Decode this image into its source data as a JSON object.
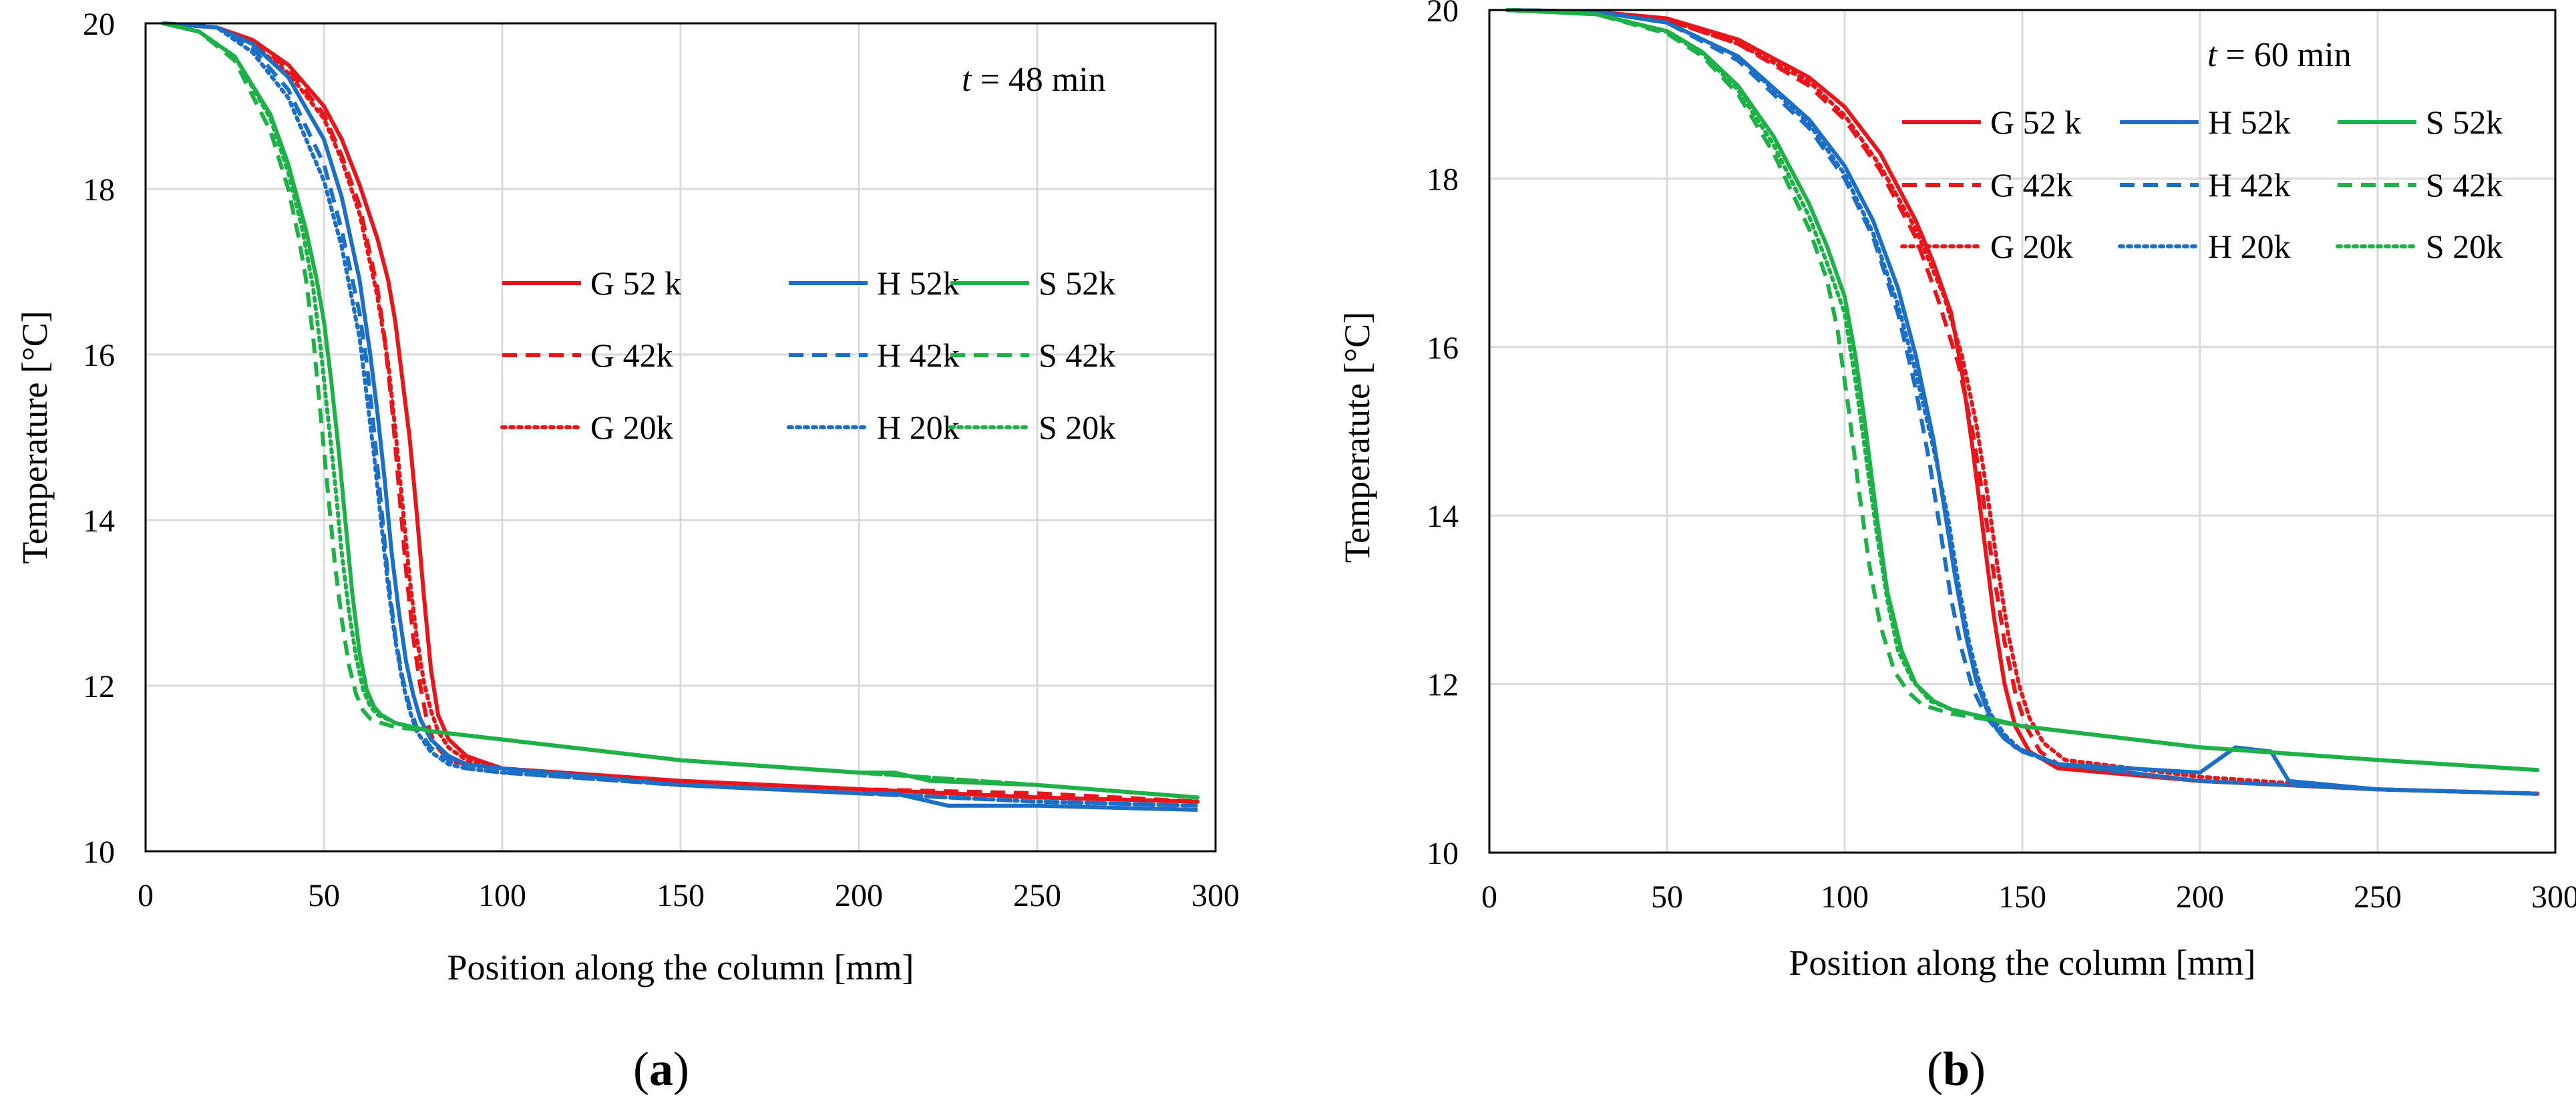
{
  "chart_data": [
    {
      "type": "line",
      "panel_label": "a",
      "annotation": {
        "var": "t",
        "rest": " = 48 min"
      },
      "xlabel": "Position along the column [mm]",
      "ylabel": "Temperature [°C]",
      "xlim": [
        0,
        300
      ],
      "ylim": [
        10,
        20
      ],
      "xticks": [
        0,
        50,
        100,
        150,
        200,
        250,
        300
      ],
      "yticks": [
        10,
        12,
        14,
        16,
        18,
        20
      ],
      "grid": true,
      "legend_position": "center-right",
      "series": [
        {
          "name": "G 52 k",
          "color": "#E8151B",
          "dash": "solid",
          "x": [
            5,
            20,
            30,
            40,
            50,
            55,
            60,
            65,
            68,
            70,
            72,
            74,
            76,
            78,
            80,
            82,
            85,
            90,
            100,
            150,
            200,
            250,
            295
          ],
          "y": [
            20,
            19.95,
            19.8,
            19.5,
            19.0,
            18.6,
            18.05,
            17.4,
            16.9,
            16.4,
            15.7,
            15.0,
            14.1,
            13.1,
            12.2,
            11.65,
            11.35,
            11.15,
            11.0,
            10.85,
            10.75,
            10.65,
            10.6
          ]
        },
        {
          "name": "G 42k",
          "color": "#E8151B",
          "dash": "dash",
          "x": [
            5,
            20,
            30,
            40,
            50,
            55,
            60,
            65,
            67,
            69,
            71,
            73,
            75,
            77,
            79,
            81,
            85,
            90,
            100,
            150,
            200,
            250,
            295
          ],
          "y": [
            20,
            19.95,
            19.8,
            19.45,
            18.9,
            18.4,
            17.8,
            16.8,
            16.2,
            15.4,
            14.4,
            13.4,
            12.6,
            12.0,
            11.55,
            11.3,
            11.1,
            11.05,
            11.0,
            10.85,
            10.75,
            10.7,
            10.6
          ]
        },
        {
          "name": "G 20k",
          "color": "#E8151B",
          "dash": "dot",
          "x": [
            5,
            20,
            30,
            40,
            50,
            55,
            60,
            65,
            68,
            70,
            72,
            74,
            76,
            78,
            80,
            82,
            85,
            90,
            100,
            150,
            200,
            250,
            295
          ],
          "y": [
            20,
            19.95,
            19.75,
            19.4,
            18.85,
            18.35,
            17.7,
            16.7,
            15.9,
            15.1,
            14.2,
            13.3,
            12.6,
            12.05,
            11.7,
            11.45,
            11.25,
            11.1,
            11.0,
            10.85,
            10.75,
            10.65,
            10.6
          ]
        },
        {
          "name": "H 52k",
          "color": "#1B6FC6",
          "dash": "solid",
          "x": [
            5,
            20,
            30,
            40,
            50,
            55,
            60,
            63,
            65,
            67,
            69,
            71,
            73,
            75,
            77,
            80,
            85,
            90,
            100,
            150,
            200,
            210,
            220,
            225,
            250,
            295
          ],
          "y": [
            20,
            19.95,
            19.75,
            19.35,
            18.6,
            17.9,
            16.9,
            16.0,
            15.3,
            14.5,
            13.6,
            12.9,
            12.3,
            11.9,
            11.6,
            11.35,
            11.15,
            11.05,
            11.0,
            10.8,
            10.7,
            10.7,
            10.6,
            10.55,
            10.55,
            10.5
          ]
        },
        {
          "name": "H 42k",
          "color": "#1B6FC6",
          "dash": "dash",
          "x": [
            5,
            20,
            30,
            40,
            50,
            55,
            60,
            62,
            64,
            66,
            68,
            70,
            72,
            74,
            76,
            80,
            85,
            90,
            100,
            150,
            200,
            250,
            295
          ],
          "y": [
            20,
            19.95,
            19.7,
            19.2,
            18.3,
            17.5,
            16.5,
            15.9,
            15.1,
            14.2,
            13.3,
            12.6,
            12.1,
            11.75,
            11.5,
            11.25,
            11.1,
            11.0,
            10.95,
            10.8,
            10.7,
            10.6,
            10.55
          ]
        },
        {
          "name": "H 20k",
          "color": "#1B6FC6",
          "dash": "dot",
          "x": [
            5,
            20,
            30,
            40,
            50,
            55,
            60,
            62,
            64,
            66,
            68,
            70,
            72,
            74,
            76,
            80,
            85,
            90,
            100,
            150,
            200,
            250,
            295
          ],
          "y": [
            20,
            19.95,
            19.65,
            19.1,
            18.1,
            17.3,
            16.2,
            15.5,
            14.8,
            14.0,
            13.2,
            12.55,
            12.05,
            11.7,
            11.45,
            11.2,
            11.05,
            11.0,
            10.95,
            10.8,
            10.7,
            10.6,
            10.55
          ]
        },
        {
          "name": "S 52k",
          "color": "#1DB148",
          "dash": "solid",
          "x": [
            5,
            15,
            25,
            35,
            40,
            45,
            48,
            50,
            52,
            54,
            56,
            58,
            60,
            62,
            64,
            66,
            70,
            80,
            100,
            150,
            200,
            210,
            220,
            250,
            295
          ],
          "y": [
            20,
            19.9,
            19.6,
            18.9,
            18.3,
            17.5,
            16.9,
            16.4,
            15.7,
            14.9,
            14.0,
            13.1,
            12.4,
            11.95,
            11.75,
            11.65,
            11.55,
            11.45,
            11.35,
            11.1,
            10.95,
            10.95,
            10.85,
            10.8,
            10.65
          ]
        },
        {
          "name": "S 42k",
          "color": "#1DB148",
          "dash": "dash",
          "x": [
            5,
            15,
            25,
            35,
            40,
            43,
            45,
            47,
            49,
            51,
            53,
            55,
            57,
            59,
            61,
            63,
            66,
            70,
            80,
            100,
            150,
            200,
            250,
            295
          ],
          "y": [
            20,
            19.9,
            19.55,
            18.7,
            18.0,
            17.4,
            16.9,
            16.2,
            15.3,
            14.4,
            13.5,
            12.8,
            12.25,
            11.9,
            11.7,
            11.6,
            11.55,
            11.5,
            11.45,
            11.35,
            11.1,
            10.95,
            10.8,
            10.65
          ]
        },
        {
          "name": "S 20k",
          "color": "#1DB148",
          "dash": "dot",
          "x": [
            5,
            15,
            25,
            35,
            40,
            44,
            47,
            49,
            51,
            53,
            55,
            57,
            59,
            61,
            63,
            65,
            70,
            80,
            100,
            150,
            200,
            250,
            295
          ],
          "y": [
            20,
            19.9,
            19.6,
            18.85,
            18.2,
            17.5,
            16.8,
            16.1,
            15.3,
            14.5,
            13.6,
            12.9,
            12.35,
            11.95,
            11.75,
            11.65,
            11.55,
            11.45,
            11.35,
            11.1,
            10.95,
            10.8,
            10.65
          ]
        }
      ]
    },
    {
      "type": "line",
      "panel_label": "b",
      "annotation": {
        "var": "t",
        "rest": " = 60 min"
      },
      "xlabel": "Position along the column [mm]",
      "ylabel": "Temperatute [°C]",
      "xlim": [
        0,
        300
      ],
      "ylim": [
        10,
        20
      ],
      "xticks": [
        0,
        50,
        100,
        150,
        200,
        250,
        300
      ],
      "yticks": [
        10,
        12,
        14,
        16,
        18,
        20
      ],
      "grid": true,
      "legend_position": "top-right",
      "series": [
        {
          "name": "G 52 k",
          "color": "#E8151B",
          "dash": "solid",
          "x": [
            5,
            30,
            50,
            70,
            90,
            100,
            110,
            120,
            125,
            130,
            133,
            136,
            139,
            142,
            145,
            148,
            152,
            160,
            200,
            250,
            295
          ],
          "y": [
            20,
            19.98,
            19.9,
            19.65,
            19.2,
            18.85,
            18.3,
            17.5,
            17.0,
            16.4,
            15.7,
            14.8,
            13.8,
            12.8,
            12.0,
            11.5,
            11.2,
            11.0,
            10.85,
            10.75,
            10.7
          ]
        },
        {
          "name": "G 42k",
          "color": "#E8151B",
          "dash": "dash",
          "x": [
            5,
            30,
            50,
            70,
            90,
            100,
            110,
            120,
            126,
            132,
            136,
            139,
            142,
            145,
            148,
            151,
            155,
            160,
            200,
            250,
            295
          ],
          "y": [
            20,
            19.98,
            19.88,
            19.6,
            19.1,
            18.7,
            18.1,
            17.3,
            16.6,
            15.8,
            15.0,
            14.2,
            13.3,
            12.5,
            11.9,
            11.5,
            11.2,
            11.05,
            10.85,
            10.75,
            10.7
          ]
        },
        {
          "name": "G 20k",
          "color": "#E8151B",
          "dash": "dot",
          "x": [
            5,
            30,
            50,
            70,
            90,
            100,
            110,
            120,
            128,
            133,
            137,
            140,
            143,
            146,
            149,
            152,
            156,
            162,
            200,
            250,
            295
          ],
          "y": [
            20,
            19.98,
            19.88,
            19.6,
            19.15,
            18.75,
            18.15,
            17.4,
            16.6,
            15.9,
            15.1,
            14.3,
            13.4,
            12.6,
            12.0,
            11.6,
            11.3,
            11.1,
            10.9,
            10.75,
            10.7
          ]
        },
        {
          "name": "H 52k",
          "color": "#1B6FC6",
          "dash": "solid",
          "x": [
            5,
            30,
            50,
            70,
            90,
            100,
            108,
            115,
            120,
            125,
            128,
            131,
            134,
            137,
            140,
            143,
            148,
            160,
            200,
            210,
            220,
            225,
            250,
            295
          ],
          "y": [
            20,
            19.98,
            19.85,
            19.45,
            18.7,
            18.15,
            17.5,
            16.7,
            15.9,
            14.9,
            14.1,
            13.3,
            12.6,
            12.05,
            11.7,
            11.45,
            11.25,
            11.05,
            10.95,
            11.25,
            11.2,
            10.85,
            10.75,
            10.7
          ]
        },
        {
          "name": "H 42k",
          "color": "#1B6FC6",
          "dash": "dash",
          "x": [
            5,
            30,
            50,
            70,
            90,
            100,
            108,
            115,
            120,
            124,
            127,
            130,
            133,
            136,
            140,
            145,
            150,
            160,
            200,
            250,
            295
          ],
          "y": [
            20,
            19.98,
            19.85,
            19.4,
            18.6,
            18.0,
            17.3,
            16.4,
            15.5,
            14.6,
            13.8,
            13.0,
            12.4,
            11.95,
            11.6,
            11.35,
            11.2,
            11.05,
            10.85,
            10.75,
            10.7
          ]
        },
        {
          "name": "H 20k",
          "color": "#1B6FC6",
          "dash": "dot",
          "x": [
            5,
            30,
            50,
            70,
            90,
            100,
            108,
            115,
            120,
            125,
            129,
            132,
            135,
            138,
            141,
            145,
            150,
            160,
            200,
            250,
            295
          ],
          "y": [
            20,
            19.98,
            19.85,
            19.45,
            18.65,
            18.05,
            17.35,
            16.5,
            15.7,
            14.8,
            14.0,
            13.2,
            12.5,
            12.0,
            11.65,
            11.4,
            11.2,
            11.05,
            10.85,
            10.75,
            10.7
          ]
        },
        {
          "name": "S 52k",
          "color": "#1DB148",
          "dash": "solid",
          "x": [
            5,
            30,
            50,
            60,
            70,
            80,
            90,
            95,
            100,
            103,
            106,
            109,
            112,
            116,
            120,
            125,
            130,
            140,
            150,
            200,
            250,
            295
          ],
          "y": [
            20,
            19.95,
            19.75,
            19.5,
            19.1,
            18.5,
            17.7,
            17.2,
            16.6,
            15.9,
            15.0,
            14.0,
            13.1,
            12.4,
            12.0,
            11.8,
            11.7,
            11.6,
            11.5,
            11.25,
            11.1,
            10.98
          ]
        },
        {
          "name": "S 42k",
          "color": "#1DB148",
          "dash": "dash",
          "x": [
            5,
            30,
            50,
            60,
            70,
            80,
            90,
            95,
            98,
            101,
            104,
            107,
            110,
            114,
            118,
            122,
            130,
            140,
            150,
            200,
            250,
            295
          ],
          "y": [
            20,
            19.95,
            19.72,
            19.45,
            19.0,
            18.3,
            17.4,
            16.8,
            16.2,
            15.3,
            14.3,
            13.4,
            12.7,
            12.15,
            11.9,
            11.75,
            11.65,
            11.58,
            11.5,
            11.25,
            11.1,
            10.98
          ]
        },
        {
          "name": "S 20k",
          "color": "#1DB148",
          "dash": "dot",
          "x": [
            5,
            30,
            50,
            60,
            70,
            80,
            90,
            95,
            100,
            103,
            106,
            109,
            112,
            115,
            119,
            124,
            130,
            140,
            150,
            200,
            250,
            295
          ],
          "y": [
            20,
            19.95,
            19.74,
            19.48,
            19.05,
            18.4,
            17.55,
            17.0,
            16.4,
            15.6,
            14.7,
            13.8,
            13.0,
            12.4,
            12.05,
            11.8,
            11.7,
            11.6,
            11.5,
            11.25,
            11.1,
            10.98
          ]
        }
      ]
    }
  ]
}
